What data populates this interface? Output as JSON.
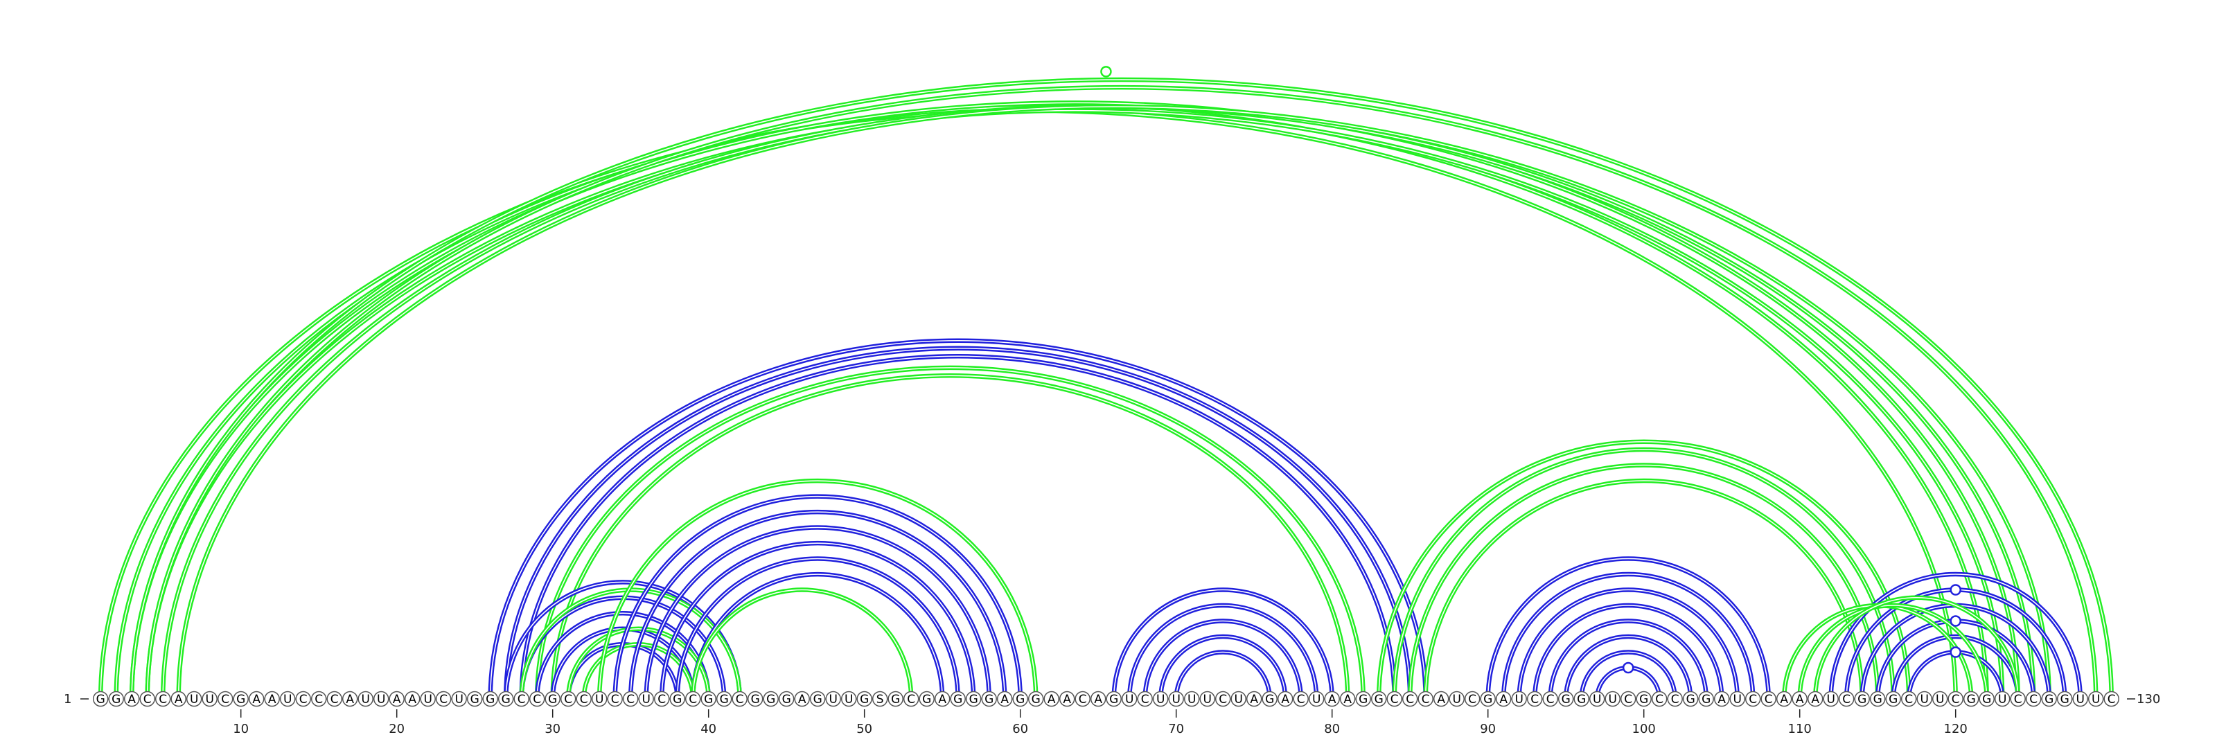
{
  "sequence": "GGACCAUUCGAAUCCCAUUAAUCUGGGCCGCCUCCUCGCGGCGGGAGUUGSGCGAGGGAGGAACAGUCUUUUCUAGACUAAGGCCCAUCGAUCCGGUUCGCCGGAUCCAAAUCGGGCUUCGGUCCGGUUC",
  "start_label": "1",
  "end_label": "130",
  "ticks": [
    "10",
    "20",
    "30",
    "40",
    "50",
    "60",
    "70",
    "80",
    "90",
    "100",
    "110",
    "120"
  ],
  "colors": {
    "green": "#22ee22",
    "blue": "#2020dd"
  },
  "arc_sets": [
    {
      "color": "green",
      "pairs": [
        [
          1,
          120
        ],
        [
          2,
          122
        ],
        [
          3,
          124
        ],
        [
          4,
          123
        ],
        [
          5,
          125
        ],
        [
          6,
          126
        ]
      ]
    },
    {
      "color": "green",
      "pairs": [
        [
          3,
          130
        ],
        [
          4,
          129
        ]
      ]
    },
    {
      "color": "blue",
      "pairs": [
        [
          26,
          86
        ],
        [
          27,
          85
        ],
        [
          28,
          84
        ]
      ]
    },
    {
      "color": "green",
      "pairs": [
        [
          29,
          82
        ],
        [
          30,
          81
        ]
      ]
    },
    {
      "color": "blue",
      "pairs": [
        [
          27,
          42
        ],
        [
          28,
          41
        ],
        [
          29,
          40
        ],
        [
          30,
          39
        ],
        [
          31,
          38
        ]
      ]
    },
    {
      "color": "green",
      "pairs": [
        [
          28,
          42
        ],
        [
          31,
          40
        ],
        [
          32,
          39
        ]
      ]
    },
    {
      "color": "blue",
      "pairs": [
        [
          34,
          60
        ],
        [
          35,
          59
        ],
        [
          36,
          58
        ],
        [
          37,
          57
        ],
        [
          38,
          56
        ],
        [
          39,
          55
        ]
      ]
    },
    {
      "color": "green",
      "pairs": [
        [
          33,
          61
        ]
      ]
    },
    {
      "color": "green",
      "pairs": [
        [
          39,
          53
        ]
      ]
    },
    {
      "color": "blue",
      "pairs": [
        [
          66,
          80
        ],
        [
          67,
          79
        ],
        [
          68,
          78
        ],
        [
          69,
          77
        ],
        [
          70,
          76
        ]
      ]
    },
    {
      "color": "green",
      "pairs": [
        [
          83,
          117
        ],
        [
          84,
          116
        ],
        [
          85,
          115
        ],
        [
          86,
          114
        ]
      ]
    },
    {
      "color": "blue",
      "pairs": [
        [
          90,
          108
        ],
        [
          91,
          107
        ],
        [
          92,
          106
        ],
        [
          93,
          105
        ],
        [
          94,
          104
        ],
        [
          95,
          103
        ],
        [
          96,
          102
        ],
        [
          97,
          101
        ]
      ]
    },
    {
      "color": "blue",
      "pairs": [
        [
          112,
          128
        ],
        [
          113,
          127
        ],
        [
          114,
          126
        ],
        [
          115,
          125
        ],
        [
          116,
          124
        ],
        [
          117,
          123
        ]
      ]
    },
    {
      "color": "green",
      "pairs": [
        [
          109,
          121
        ],
        [
          110,
          122
        ],
        [
          111,
          124
        ]
      ]
    }
  ],
  "markers": [
    {
      "color": "green",
      "base": 65.5,
      "arc": [
        1,
        130
      ]
    },
    {
      "color": "blue",
      "base": 120,
      "arc": [
        113,
        127
      ]
    },
    {
      "color": "blue",
      "base": 120,
      "arc": [
        115,
        125
      ]
    },
    {
      "color": "blue",
      "base": 120,
      "arc": [
        117,
        123
      ]
    },
    {
      "color": "blue",
      "base": 99,
      "arc": [
        97,
        101
      ]
    }
  ]
}
